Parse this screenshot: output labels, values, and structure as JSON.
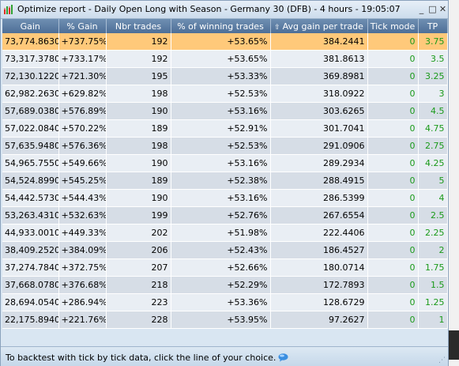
{
  "window": {
    "title": "Optimize report - Daily Open Long with Season - Germany 30 (DFB) - 4 hours - 19:05:07",
    "minimize_glyph": "_",
    "maximize_glyph": "□",
    "close_glyph": "✕"
  },
  "table": {
    "columns": [
      "Gain",
      "% Gain",
      "Nbr trades",
      "% of winning trades",
      "Avg gain per trade",
      "Tick mode",
      "TP"
    ],
    "sorted_column_icon": "sort-up-icon",
    "rows": [
      {
        "gain": "73,774.8630",
        "pct_gain": "+737.75%",
        "trades": "192",
        "win": "+53.65%",
        "avg": "384.2441",
        "tick": "0",
        "tp": "3.75"
      },
      {
        "gain": "73,317.3780",
        "pct_gain": "+733.17%",
        "trades": "192",
        "win": "+53.65%",
        "avg": "381.8613",
        "tick": "0",
        "tp": "3.5"
      },
      {
        "gain": "72,130.1220",
        "pct_gain": "+721.30%",
        "trades": "195",
        "win": "+53.33%",
        "avg": "369.8981",
        "tick": "0",
        "tp": "3.25"
      },
      {
        "gain": "62,982.2630",
        "pct_gain": "+629.82%",
        "trades": "198",
        "win": "+52.53%",
        "avg": "318.0922",
        "tick": "0",
        "tp": "3"
      },
      {
        "gain": "57,689.0380",
        "pct_gain": "+576.89%",
        "trades": "190",
        "win": "+53.16%",
        "avg": "303.6265",
        "tick": "0",
        "tp": "4.5"
      },
      {
        "gain": "57,022.0840",
        "pct_gain": "+570.22%",
        "trades": "189",
        "win": "+52.91%",
        "avg": "301.7041",
        "tick": "0",
        "tp": "4.75"
      },
      {
        "gain": "57,635.9480",
        "pct_gain": "+576.36%",
        "trades": "198",
        "win": "+52.53%",
        "avg": "291.0906",
        "tick": "0",
        "tp": "2.75"
      },
      {
        "gain": "54,965.7550",
        "pct_gain": "+549.66%",
        "trades": "190",
        "win": "+53.16%",
        "avg": "289.2934",
        "tick": "0",
        "tp": "4.25"
      },
      {
        "gain": "54,524.8990",
        "pct_gain": "+545.25%",
        "trades": "189",
        "win": "+52.38%",
        "avg": "288.4915",
        "tick": "0",
        "tp": "5"
      },
      {
        "gain": "54,442.5730",
        "pct_gain": "+544.43%",
        "trades": "190",
        "win": "+53.16%",
        "avg": "286.5399",
        "tick": "0",
        "tp": "4"
      },
      {
        "gain": "53,263.4310",
        "pct_gain": "+532.63%",
        "trades": "199",
        "win": "+52.76%",
        "avg": "267.6554",
        "tick": "0",
        "tp": "2.5"
      },
      {
        "gain": "44,933.0010",
        "pct_gain": "+449.33%",
        "trades": "202",
        "win": "+51.98%",
        "avg": "222.4406",
        "tick": "0",
        "tp": "2.25"
      },
      {
        "gain": "38,409.2520",
        "pct_gain": "+384.09%",
        "trades": "206",
        "win": "+52.43%",
        "avg": "186.4527",
        "tick": "0",
        "tp": "2"
      },
      {
        "gain": "37,274.7840",
        "pct_gain": "+372.75%",
        "trades": "207",
        "win": "+52.66%",
        "avg": "180.0714",
        "tick": "0",
        "tp": "1.75"
      },
      {
        "gain": "37,668.0780",
        "pct_gain": "+376.68%",
        "trades": "218",
        "win": "+52.29%",
        "avg": "172.7893",
        "tick": "0",
        "tp": "1.5"
      },
      {
        "gain": "28,694.0540",
        "pct_gain": "+286.94%",
        "trades": "223",
        "win": "+53.36%",
        "avg": "128.6729",
        "tick": "0",
        "tp": "1.25"
      },
      {
        "gain": "22,175.8940",
        "pct_gain": "+221.76%",
        "trades": "228",
        "win": "+53.95%",
        "avg": "97.2627",
        "tick": "0",
        "tp": "1"
      }
    ]
  },
  "status": {
    "text": "To backtest with tick by tick data, click the line of your choice."
  },
  "colors": {
    "header_bg": "#5b7ca3",
    "selected_row": "#ffc97a",
    "row_light": "#e9eef4",
    "row_dark": "#d6dde6",
    "green_text": "#1a9a1a"
  }
}
